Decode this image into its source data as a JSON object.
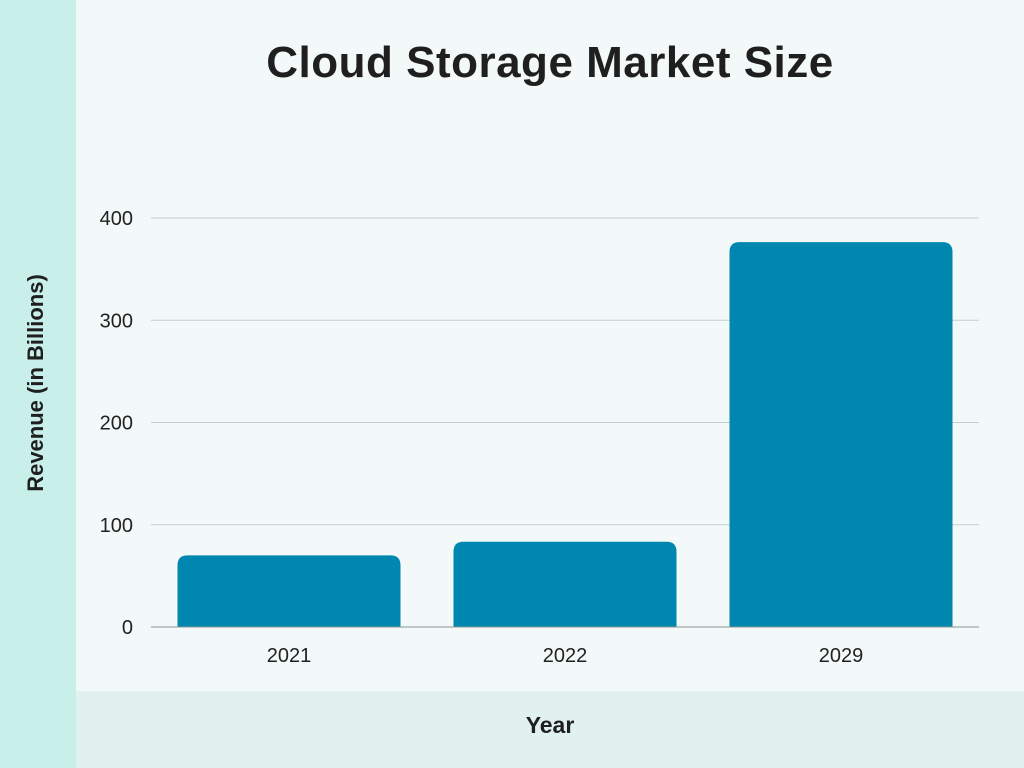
{
  "chart_data": {
    "type": "bar",
    "title": "Cloud Storage Market Size",
    "xlabel": "Year",
    "ylabel": "Revenue (in Billions)",
    "categories": [
      "2021",
      "2022",
      "2029"
    ],
    "values": [
      70,
      83.4,
      376.4
    ],
    "ylim": [
      0,
      400
    ],
    "yticks": [
      0,
      100,
      200,
      300,
      400
    ],
    "grid": true,
    "bar_color": "#0087b0",
    "grid_color": "#c4cfcd",
    "text_color": "#1f1f1f"
  }
}
